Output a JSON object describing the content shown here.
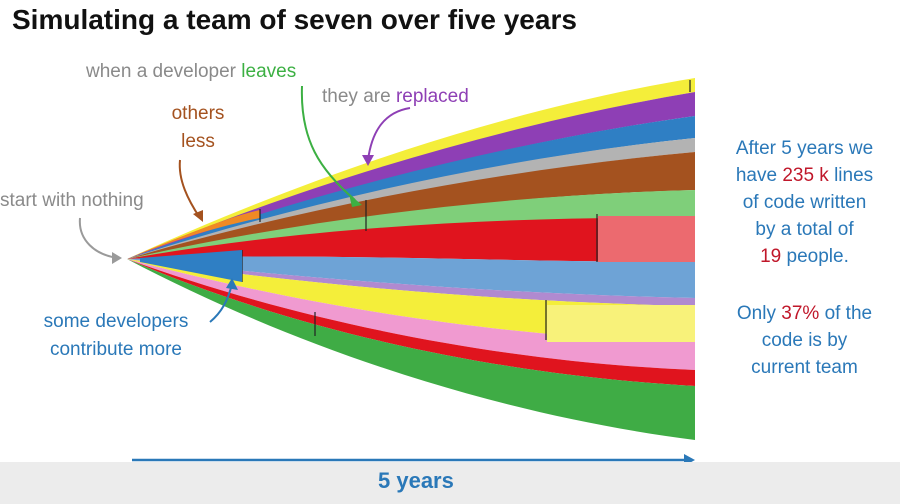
{
  "title": "Simulating a team of seven over five years",
  "annotations": {
    "when_a_developer": "when a developer",
    "leaves": "leaves",
    "they_are": "they are",
    "replaced": "replaced",
    "others": "others",
    "less": "less",
    "start_with_nothing": "start with nothing",
    "some_developers": "some developers",
    "contribute_more": "contribute more"
  },
  "stats": {
    "line1": "After 5 years we",
    "line2_pre": "have",
    "lines_value": "235 k",
    "line2_post": "lines",
    "line3": "of code written",
    "line4": "by a total of",
    "people_value": "19",
    "line5_post": "people.",
    "line6_pre": "Only",
    "percent_value": "37%",
    "line6_post": "of the",
    "line7": "code is by",
    "line8": "current team"
  },
  "axis_label": "5 years",
  "colors": {
    "accent_blue": "#2a78b8",
    "highlight_red": "#c0172a",
    "green": "#3cb043",
    "purple": "#8e3fb5",
    "brown": "#a4521f"
  }
}
